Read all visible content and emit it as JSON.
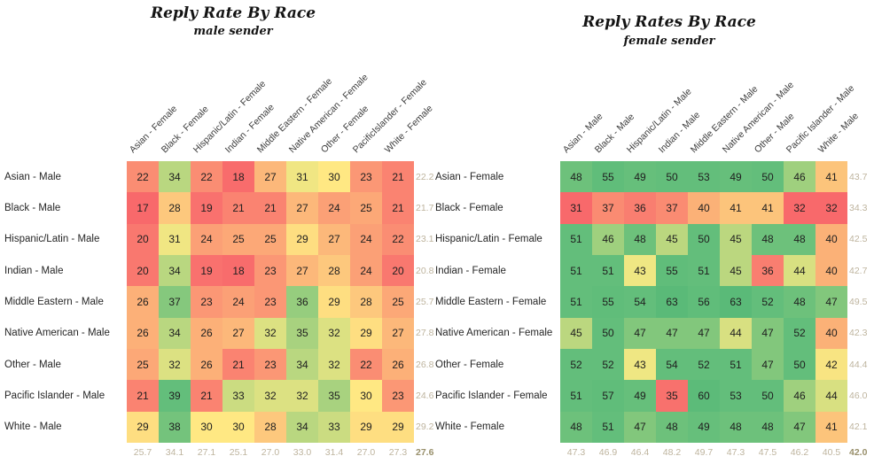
{
  "colors": {
    "scale_low": "#F8696B",
    "scale_mid": "#FFEB84",
    "scale_high": "#63BE7B",
    "average_text": "#BEB49E",
    "overall_average_text": "#99906C"
  },
  "chart_data": [
    {
      "type": "heatmap",
      "title": "Reply Rate By Race",
      "subtitle": "male sender",
      "x_categories": [
        "Asian - Female",
        "Black - Female",
        "Hispanic/Latin - Female",
        "Indian - Female",
        "Middle Eastern - Female",
        "Native American - Female",
        "Other - Female",
        "PacificIslander - Female",
        "White - Female"
      ],
      "y_categories": [
        "Asian - Male",
        "Black - Male",
        "Hispanic/Latin - Male",
        "Indian - Male",
        "Middle Eastern - Male",
        "Native American - Male",
        "Other - Male",
        "Pacific Islander - Male",
        "White - Male"
      ],
      "values": [
        [
          22,
          34,
          22,
          18,
          27,
          31,
          30,
          23,
          21
        ],
        [
          17,
          28,
          19,
          21,
          21,
          27,
          24,
          25,
          21
        ],
        [
          20,
          31,
          24,
          25,
          25,
          29,
          27,
          24,
          22
        ],
        [
          20,
          34,
          19,
          18,
          23,
          27,
          28,
          24,
          20
        ],
        [
          26,
          37,
          23,
          24,
          23,
          36,
          29,
          28,
          25
        ],
        [
          26,
          34,
          26,
          27,
          32,
          35,
          32,
          29,
          27
        ],
        [
          25,
          32,
          26,
          21,
          23,
          34,
          32,
          22,
          26
        ],
        [
          21,
          39,
          21,
          33,
          32,
          32,
          35,
          30,
          23
        ],
        [
          29,
          38,
          30,
          30,
          28,
          34,
          33,
          29,
          29
        ]
      ],
      "row_averages": [
        "22.2",
        "21.7",
        "23.1",
        "20.8",
        "25.7",
        "27.8",
        "26.8",
        "24.6",
        "29.2"
      ],
      "column_averages": [
        "25.7",
        "34.1",
        "27.1",
        "25.1",
        "27.0",
        "33.0",
        "31.4",
        "27.0",
        "27.3"
      ],
      "overall_average": "27.6",
      "color_scale": {
        "low_value": 17,
        "high_value": 39,
        "low_color": "#F8696B",
        "mid_color": "#FFEB84",
        "high_color": "#63BE7B"
      },
      "legend": "none",
      "grid": false
    },
    {
      "type": "heatmap",
      "title": "Reply Rates By Race",
      "subtitle": "female sender",
      "x_categories": [
        "Asian - Male",
        "Black - Male",
        "Hispanic/Latin - Male",
        "Indian - Male",
        "Middle Eastern - Male",
        "Native American - Male",
        "Other - Male",
        "Pacific Islander - Male",
        "White - Male"
      ],
      "y_categories": [
        "Asian - Female",
        "Black - Female",
        "Hispanic/Latin - Female",
        "Indian - Female",
        "Middle Eastern - Female",
        "Native American - Female",
        "Other - Female",
        "Pacific Islander - Female",
        "White - Female"
      ],
      "values": [
        [
          48,
          55,
          49,
          50,
          53,
          49,
          50,
          46,
          41
        ],
        [
          31,
          37,
          36,
          37,
          40,
          41,
          41,
          32,
          32
        ],
        [
          51,
          46,
          48,
          45,
          50,
          45,
          48,
          48,
          40
        ],
        [
          51,
          51,
          43,
          55,
          51,
          45,
          36,
          44,
          40
        ],
        [
          51,
          55,
          54,
          63,
          56,
          63,
          52,
          48,
          47
        ],
        [
          45,
          50,
          47,
          47,
          47,
          44,
          47,
          52,
          40
        ],
        [
          52,
          52,
          43,
          54,
          52,
          51,
          47,
          50,
          42
        ],
        [
          51,
          57,
          49,
          35,
          60,
          53,
          50,
          46,
          44
        ],
        [
          48,
          51,
          47,
          48,
          49,
          48,
          48,
          47,
          41
        ]
      ],
      "row_averages": [
        "43.7",
        "34.3",
        "42.5",
        "42.7",
        "49.5",
        "42.3",
        "44.4",
        "46.0",
        "42.1"
      ],
      "column_averages": [
        "47.3",
        "46.9",
        "46.4",
        "48.2",
        "49.7",
        "47.3",
        "47.5",
        "46.2",
        "40.5"
      ],
      "overall_average": "42.0",
      "color_scale": {
        "low_value": 31,
        "high_value": 63,
        "low_color": "#F8696B",
        "mid_color": "#FFEB84",
        "high_color": "#63BE7B"
      },
      "legend": "none",
      "grid": false
    }
  ]
}
